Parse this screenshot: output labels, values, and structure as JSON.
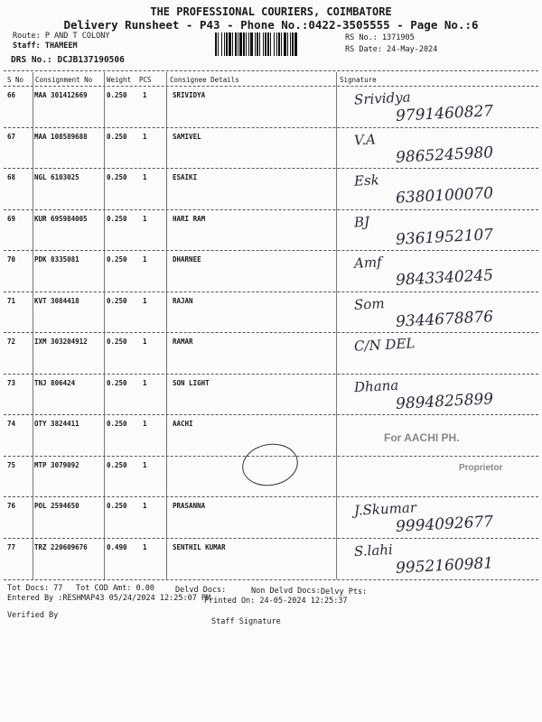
{
  "header": {
    "company": "THE PROFESSIONAL COURIERS, COIMBATORE",
    "subtitle": "Delivery Runsheet - P43 - Phone No.:0422-3505555 - Page No.:6",
    "route": "Route: P AND T COLONY",
    "staff": "Staff: THAMEEM",
    "drs": "DRS No.: DCJB137190506",
    "rs_no": "RS No.: 1371905",
    "rs_date": "RS Date: 24-May-2024"
  },
  "table": {
    "columns": [
      "S No",
      "Consignment No",
      "Weight",
      "PCS",
      "Consignee Details",
      "Signature"
    ],
    "rows": [
      {
        "sno": "66",
        "cn": "MAA 301412669",
        "weight": "0.250",
        "pcs": "1",
        "consignee": "SRIVIDYA",
        "sig": "Srividya",
        "sig_num": "9791460827"
      },
      {
        "sno": "67",
        "cn": "MAA 108589688",
        "weight": "0.250",
        "pcs": "1",
        "consignee": "SAMIVEL",
        "sig": "V.A",
        "sig_num": "9865245980"
      },
      {
        "sno": "68",
        "cn": "NGL 6103025",
        "weight": "0.250",
        "pcs": "1",
        "consignee": "ESAIKI",
        "sig": "Esk",
        "sig_num": "6380100070"
      },
      {
        "sno": "69",
        "cn": "KUR 695984005",
        "weight": "0.250",
        "pcs": "1",
        "consignee": "HARI RAM",
        "sig": "BJ",
        "sig_num": "9361952107"
      },
      {
        "sno": "70",
        "cn": "PDK 8335081",
        "weight": "0.250",
        "pcs": "1",
        "consignee": "DHARNEE",
        "sig": "Amf",
        "sig_num": "9843340245"
      },
      {
        "sno": "71",
        "cn": "KVT 3084418",
        "weight": "0.250",
        "pcs": "1",
        "consignee": "RAJAN",
        "sig": "Som",
        "sig_num": "9344678876"
      },
      {
        "sno": "72",
        "cn": "IXM 303204912",
        "weight": "0.250",
        "pcs": "1",
        "consignee": "RAMAR",
        "sig": "C/N DEL",
        "sig_num": ""
      },
      {
        "sno": "73",
        "cn": "TNJ 806424",
        "weight": "0.250",
        "pcs": "1",
        "consignee": "SON LIGHT",
        "sig": "Dhana",
        "sig_num": "9894825899"
      },
      {
        "sno": "74",
        "cn": "OTY 3824411",
        "weight": "0.250",
        "pcs": "1",
        "consignee": "AACHI",
        "sig": "",
        "sig_num": ""
      },
      {
        "sno": "75",
        "cn": "MTP 3079092",
        "weight": "0.250",
        "pcs": "1",
        "consignee": "",
        "sig": "",
        "sig_num": ""
      },
      {
        "sno": "76",
        "cn": "POL 2594650",
        "weight": "0.250",
        "pcs": "1",
        "consignee": "PRASANNA",
        "sig": "J.Skumar",
        "sig_num": "9994092677"
      },
      {
        "sno": "77",
        "cn": "TRZ 220609676",
        "weight": "0.490",
        "pcs": "1",
        "consignee": "SENTHIL KUMAR",
        "sig": "S.lahi",
        "sig_num": "9952160981"
      }
    ]
  },
  "stamp": {
    "line1": "For AACHI PH.",
    "line2": "Proprietor"
  },
  "footer": {
    "tot_docs": "Tot Docs:  77",
    "tot_cod": "Tot COD Amt:     0.00",
    "delvd_docs": "Delvd Docs:",
    "non_delvd_docs": "Non Delvd Docs:",
    "delvy_pts": "Delvy Pts:",
    "entered_by": "Entered By :RESHMAP43 05/24/2024 12:25:07 PM",
    "printed_on": "Printed On: 24-05-2024 12:25:37",
    "verified_by": "Verified By",
    "staff_signature": "Staff Signature"
  }
}
